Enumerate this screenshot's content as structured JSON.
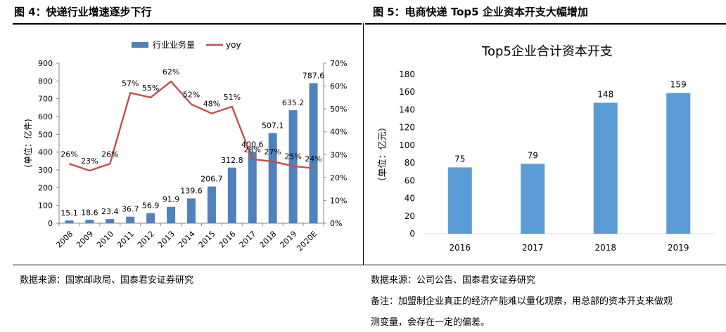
{
  "figures": [
    {
      "heading": "图 4：快递行业增速逐步下行",
      "source": "数据来源：国家邮政局、国泰君安证券研究"
    },
    {
      "heading": "图 5：电商快递 Top5 企业资本开支大幅增加",
      "source": "数据来源：公司公告、国泰君安证券研究",
      "remark_lines": [
        "备注：加盟制企业真正的经济产能难以量化观察，用总部的资本开支来做观",
        "测变量，会存在一定的偏差。"
      ]
    }
  ],
  "colors": {
    "bar": "#4f81bd",
    "bar_right": "#5b9bd5",
    "line": "#c0504d",
    "axis": "#868686",
    "text": "#000000"
  },
  "chart_data": [
    {
      "type": "bar+line",
      "title": "",
      "categories": [
        "2008",
        "2009",
        "2010",
        "2011",
        "2012",
        "2013",
        "2014",
        "2015",
        "2016",
        "2017",
        "2018",
        "2019",
        "2020E"
      ],
      "series": [
        {
          "name": "行业业务量",
          "type": "bar",
          "axis": "left",
          "values": [
            15.1,
            18.6,
            23.4,
            36.7,
            56.9,
            91.9,
            139.6,
            206.7,
            312.8,
            400.6,
            507.1,
            635.2,
            787.6
          ],
          "labels": [
            "15.1",
            "18.6",
            "23.4",
            "36.7",
            "56.9",
            "91.9",
            "139.6",
            "206.7",
            "312.8",
            "400.6",
            "507.1",
            "635.2",
            "787.6"
          ]
        },
        {
          "name": "yoy",
          "type": "line",
          "axis": "right",
          "values": [
            26,
            23,
            26,
            57,
            55,
            62,
            52,
            48,
            51,
            28,
            27,
            25,
            24
          ],
          "labels": [
            "26%",
            "23%",
            "26%",
            "57%",
            "55%",
            "62%",
            "52%",
            "48%",
            "51%",
            "28%",
            "27%",
            "25%",
            "24%"
          ]
        }
      ],
      "ylabel": "(单位：亿件)",
      "ylim": [
        0,
        900
      ],
      "yticks": [
        "0",
        "100",
        "200",
        "300",
        "400",
        "500",
        "600",
        "700",
        "800",
        "900"
      ],
      "y2lim": [
        0,
        70
      ],
      "y2ticks": [
        "0%",
        "10%",
        "20%",
        "30%",
        "40%",
        "50%",
        "60%",
        "70%"
      ],
      "legend_position": "top-center",
      "grid": false
    },
    {
      "type": "bar",
      "title": "Top5企业合计资本开支",
      "categories": [
        "2016",
        "2017",
        "2018",
        "2019"
      ],
      "values": [
        75,
        79,
        148,
        159
      ],
      "labels": [
        "75",
        "79",
        "148",
        "159"
      ],
      "ylabel": "（单位：亿元）",
      "ylim": [
        0,
        180
      ],
      "yticks": [
        "0",
        "20",
        "40",
        "60",
        "80",
        "100",
        "120",
        "140",
        "160",
        "180"
      ],
      "grid": false,
      "legend_position": "none"
    }
  ]
}
